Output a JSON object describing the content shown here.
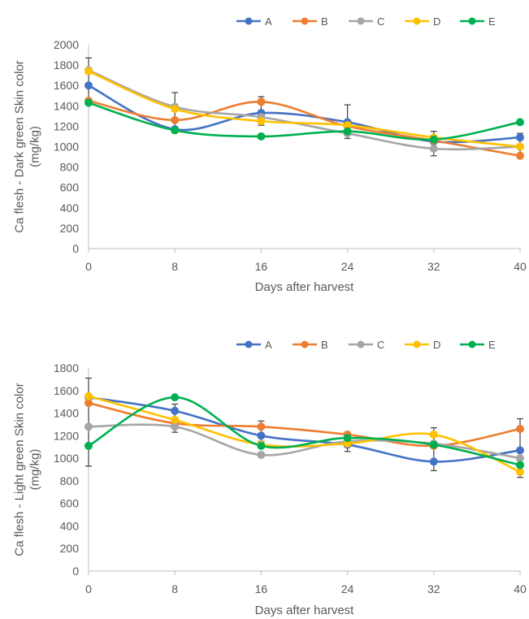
{
  "chart_data": [
    {
      "type": "line",
      "title": "",
      "xlabel": "Days after harvest",
      "ylabel": "Ca flesh - Dark green Skin color (mg/kg)",
      "x": [
        0,
        8,
        16,
        24,
        32,
        40
      ],
      "ylim": [
        0,
        2000
      ],
      "yticks": [
        0,
        200,
        400,
        600,
        800,
        1000,
        1200,
        1400,
        1600,
        1800,
        2000
      ],
      "grid": false,
      "legend_position": "top",
      "series": [
        {
          "name": "A",
          "color": "#4472C4",
          "values": [
            1600,
            1170,
            1330,
            1240,
            1050,
            1090
          ]
        },
        {
          "name": "B",
          "color": "#ED7D31",
          "values": [
            1450,
            1260,
            1440,
            1200,
            1060,
            910
          ]
        },
        {
          "name": "C",
          "color": "#A5A5A5",
          "values": [
            1750,
            1390,
            1290,
            1130,
            980,
            1000
          ]
        },
        {
          "name": "D",
          "color": "#FFC000",
          "values": [
            1740,
            1370,
            1250,
            1210,
            1090,
            1000
          ]
        },
        {
          "name": "E",
          "color": "#00B050",
          "values": [
            1430,
            1160,
            1100,
            1150,
            1070,
            1240
          ]
        }
      ],
      "error_bars": [
        {
          "x": 0,
          "low": 1430,
          "high": 1870
        },
        {
          "x": 8,
          "low": 1140,
          "high": 1530
        },
        {
          "x": 16,
          "low": 1210,
          "high": 1490
        },
        {
          "x": 24,
          "low": 1080,
          "high": 1410
        },
        {
          "x": 32,
          "low": 910,
          "high": 1150
        },
        {
          "x": 40,
          "low": 890,
          "high": 1130
        }
      ]
    },
    {
      "type": "line",
      "title": "",
      "xlabel": "Days after harvest",
      "ylabel": "Ca flesh - Light green Skin color (mg/kg)",
      "x": [
        0,
        8,
        16,
        24,
        32,
        40
      ],
      "ylim": [
        0,
        1800
      ],
      "yticks": [
        0,
        200,
        400,
        600,
        800,
        1000,
        1200,
        1400,
        1600,
        1800
      ],
      "grid": false,
      "legend_position": "top",
      "series": [
        {
          "name": "A",
          "color": "#4472C4",
          "values": [
            1540,
            1420,
            1200,
            1120,
            970,
            1070
          ]
        },
        {
          "name": "B",
          "color": "#ED7D31",
          "values": [
            1490,
            1310,
            1280,
            1210,
            1110,
            1260
          ]
        },
        {
          "name": "C",
          "color": "#A5A5A5",
          "values": [
            1280,
            1280,
            1030,
            1150,
            1130,
            1000
          ]
        },
        {
          "name": "D",
          "color": "#FFC000",
          "values": [
            1550,
            1340,
            1120,
            1130,
            1210,
            880
          ]
        },
        {
          "name": "E",
          "color": "#00B050",
          "values": [
            1110,
            1540,
            1110,
            1180,
            1120,
            940
          ]
        }
      ],
      "error_bars": [
        {
          "x": 0,
          "low": 930,
          "high": 1710
        },
        {
          "x": 8,
          "low": 1230,
          "high": 1480
        },
        {
          "x": 16,
          "low": 1150,
          "high": 1330
        },
        {
          "x": 24,
          "low": 1060,
          "high": 1230
        },
        {
          "x": 32,
          "low": 890,
          "high": 1270
        },
        {
          "x": 40,
          "low": 830,
          "high": 1350
        }
      ]
    }
  ]
}
